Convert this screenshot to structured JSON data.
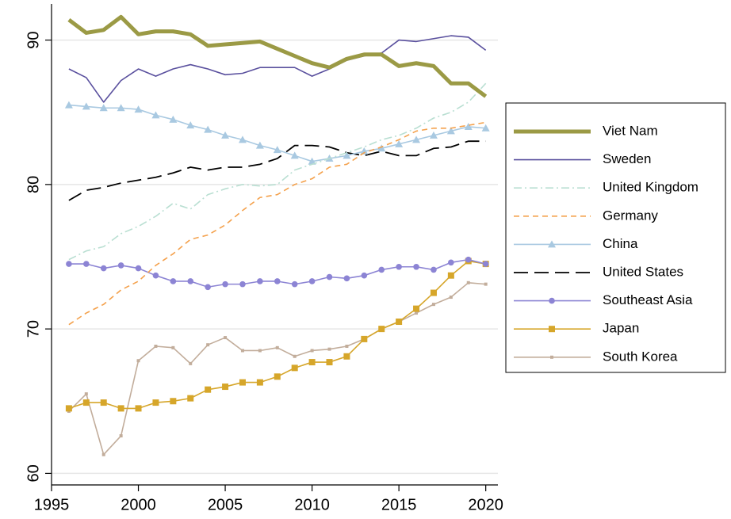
{
  "chart_data": {
    "type": "line",
    "x": [
      1996,
      1997,
      1998,
      1999,
      2000,
      2001,
      2002,
      2003,
      2004,
      2005,
      2006,
      2007,
      2008,
      2009,
      2010,
      2011,
      2012,
      2013,
      2014,
      2015,
      2016,
      2017,
      2018,
      2019,
      2020
    ],
    "xlim": [
      1995,
      2020.7
    ],
    "xticks": [
      1995,
      2000,
      2005,
      2010,
      2015,
      2020
    ],
    "ylim": [
      59.2,
      92.5
    ],
    "yticks": [
      60,
      70,
      80,
      90
    ],
    "grid": true,
    "legend": "right",
    "series": [
      {
        "name": "Viet Nam",
        "color": "#9b9a45",
        "line_style": "thick",
        "marker": "none",
        "values": [
          91.4,
          90.5,
          90.7,
          91.6,
          90.4,
          90.6,
          90.6,
          90.4,
          89.6,
          89.7,
          89.8,
          89.9,
          89.4,
          88.9,
          88.4,
          88.1,
          88.7,
          89.0,
          89.0,
          88.2,
          88.4,
          88.2,
          87.0,
          87.0,
          86.1
        ]
      },
      {
        "name": "Sweden",
        "color": "#5a509e",
        "line_style": "solid",
        "marker": "none",
        "values": [
          88.0,
          87.4,
          85.7,
          87.2,
          88.0,
          87.5,
          88.0,
          88.3,
          88.0,
          87.6,
          87.7,
          88.1,
          88.1,
          88.1,
          87.5,
          88.0,
          88.6,
          88.9,
          89.1,
          90.0,
          89.9,
          90.1,
          90.3,
          90.2,
          89.3
        ]
      },
      {
        "name": "United Kingdom",
        "color": "#b9dfd2",
        "line_style": "dashdot",
        "marker": "none",
        "values": [
          74.8,
          75.4,
          75.7,
          76.6,
          77.1,
          77.8,
          78.7,
          78.3,
          79.3,
          79.7,
          80.0,
          79.9,
          80.0,
          81.0,
          81.4,
          81.8,
          82.2,
          82.6,
          83.1,
          83.4,
          83.9,
          84.6,
          85.0,
          85.7,
          87.0
        ]
      },
      {
        "name": "Germany",
        "color": "#f4a14c",
        "line_style": "dash",
        "marker": "none",
        "values": [
          70.3,
          71.1,
          71.7,
          72.7,
          73.3,
          74.4,
          75.2,
          76.2,
          76.5,
          77.2,
          78.2,
          79.1,
          79.3,
          80.0,
          80.4,
          81.2,
          81.4,
          82.2,
          82.6,
          83.1,
          83.7,
          83.9,
          83.9,
          84.1,
          84.3
        ]
      },
      {
        "name": "China",
        "color": "#a9c9e1",
        "line_style": "solid",
        "marker": "triangle",
        "values": [
          85.5,
          85.4,
          85.3,
          85.3,
          85.2,
          84.8,
          84.5,
          84.1,
          83.8,
          83.4,
          83.1,
          82.7,
          82.4,
          82.0,
          81.6,
          81.8,
          82.0,
          82.3,
          82.5,
          82.8,
          83.1,
          83.4,
          83.7,
          84.0,
          83.9
        ]
      },
      {
        "name": "United States",
        "color": "#000000",
        "line_style": "longdash",
        "marker": "none",
        "values": [
          78.9,
          79.6,
          79.8,
          80.1,
          80.3,
          80.5,
          80.8,
          81.2,
          81.0,
          81.2,
          81.2,
          81.4,
          81.8,
          82.7,
          82.7,
          82.6,
          82.2,
          82.0,
          82.3,
          82.0,
          82.0,
          82.5,
          82.6,
          83.0,
          83.0
        ]
      },
      {
        "name": "Southeast Asia",
        "color": "#8c84d4",
        "line_style": "solid",
        "marker": "circle",
        "values": [
          74.5,
          74.5,
          74.2,
          74.4,
          74.2,
          73.7,
          73.3,
          73.3,
          72.9,
          73.1,
          73.1,
          73.3,
          73.3,
          73.1,
          73.3,
          73.6,
          73.5,
          73.7,
          74.1,
          74.3,
          74.3,
          74.1,
          74.6,
          74.8,
          74.5
        ]
      },
      {
        "name": "Japan",
        "color": "#d6a62a",
        "line_style": "solid",
        "marker": "square",
        "values": [
          64.5,
          64.9,
          64.9,
          64.5,
          64.5,
          64.9,
          65.0,
          65.2,
          65.8,
          66.0,
          66.3,
          66.3,
          66.7,
          67.3,
          67.7,
          67.7,
          68.1,
          69.3,
          70.0,
          70.5,
          71.4,
          72.5,
          73.7,
          74.7,
          74.5
        ]
      },
      {
        "name": "South Korea",
        "color": "#c2ad9b",
        "line_style": "solid",
        "marker": "smallsquare",
        "values": [
          64.3,
          65.5,
          61.3,
          62.6,
          67.8,
          68.8,
          68.7,
          67.6,
          68.9,
          69.4,
          68.5,
          68.5,
          68.7,
          68.1,
          68.5,
          68.6,
          68.8,
          69.3,
          70.0,
          70.5,
          71.1,
          71.7,
          72.2,
          73.2,
          73.1
        ]
      }
    ]
  }
}
